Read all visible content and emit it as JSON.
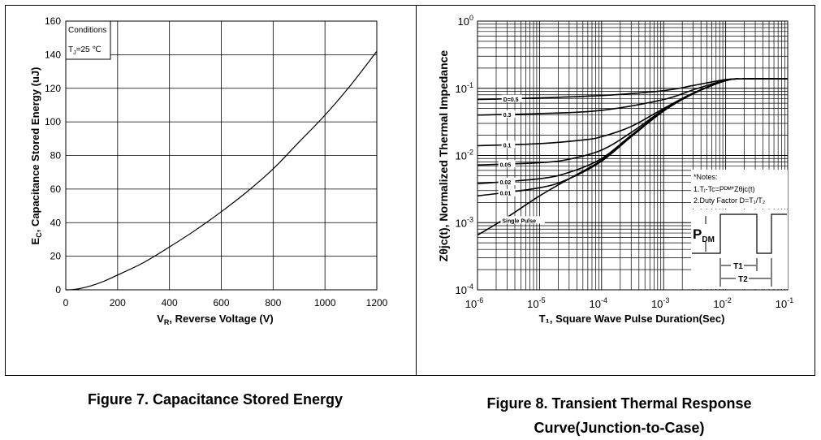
{
  "chart_data": [
    {
      "type": "line",
      "title": "Figure 7. Capacitance Stored Energy",
      "xlabel": "V_R,  Reverse Voltage (V)",
      "ylabel": "E_C, Capacitance Stored Energy (uJ)",
      "xlim": [
        0,
        1200
      ],
      "ylim": [
        0,
        160
      ],
      "x_ticks": [
        "0",
        "200",
        "400",
        "600",
        "800",
        "1000",
        "1200"
      ],
      "y_ticks": [
        "0",
        "20",
        "40",
        "60",
        "80",
        "100",
        "120",
        "140",
        "160"
      ],
      "grid": true,
      "annotation": {
        "line1": "Conditions",
        "line2_pre": "T",
        "line2_sub": "J",
        "line2_post": "=25 ℃"
      },
      "series": [
        {
          "x": [
            0,
            20,
            50,
            100,
            150,
            200,
            300,
            400,
            500,
            600,
            700,
            800,
            900,
            1000,
            1100,
            1200
          ],
          "values": [
            0,
            0.1,
            0.6,
            2.5,
            5.3,
            8.8,
            16.2,
            25.5,
            35.5,
            46.5,
            58.5,
            72.0,
            88.0,
            104.0,
            122.0,
            142.0
          ]
        }
      ]
    },
    {
      "type": "line",
      "title": "Figure 8. Transient Thermal Response Curve(Junction-to-Case)",
      "title_line1": "Figure 8. Transient Thermal Response",
      "title_line2": "Curve(Junction-to-Case)",
      "xlabel": "T₁, Square Wave Pulse Duration(Sec)",
      "ylabel": "Zθjc(t), Normalized Thermal Impedance",
      "xscale": "log",
      "yscale": "log",
      "xlim": [
        1e-06,
        0.1
      ],
      "ylim": [
        0.0001,
        1
      ],
      "x_ticks": [
        {
          "base": "10",
          "exp": "-6"
        },
        {
          "base": "10",
          "exp": "-5"
        },
        {
          "base": "10",
          "exp": "-4"
        },
        {
          "base": "10",
          "exp": "-3"
        },
        {
          "base": "10",
          "exp": "-2"
        },
        {
          "base": "10",
          "exp": "-1"
        }
      ],
      "y_ticks": [
        {
          "base": "10",
          "exp": "0"
        },
        {
          "base": "10",
          "exp": "-1"
        },
        {
          "base": "10",
          "exp": "-2"
        },
        {
          "base": "10",
          "exp": "-3"
        },
        {
          "base": "10",
          "exp": "-4"
        }
      ],
      "grid": true,
      "notes": {
        "title": "*Notes:",
        "line1": "1.Tⱼ-Tc=Pᴰᴹ*Zθjc(t)",
        "line2": "2.Duty Factor D=T₁/T₂"
      },
      "pulse_labels": {
        "pdm": "P",
        "pdm_sub": "DM",
        "t1": "T1",
        "t2": "T2"
      },
      "series": [
        {
          "name": "D=0.5",
          "x": [
            1e-06,
            1e-05,
            0.0001,
            0.001,
            0.003,
            0.01,
            0.02,
            0.1
          ],
          "values": [
            0.068,
            0.072,
            0.078,
            0.092,
            0.11,
            0.135,
            0.138,
            0.138
          ]
        },
        {
          "name": "0.3",
          "x": [
            1e-06,
            1e-05,
            0.0001,
            0.001,
            0.003,
            0.01,
            0.02,
            0.1
          ],
          "values": [
            0.04,
            0.042,
            0.047,
            0.068,
            0.095,
            0.132,
            0.138,
            0.138
          ]
        },
        {
          "name": "0.1",
          "x": [
            1e-06,
            1e-05,
            5e-05,
            0.0001,
            0.0003,
            0.001,
            0.003,
            0.01,
            0.02,
            0.1
          ],
          "values": [
            0.014,
            0.015,
            0.017,
            0.019,
            0.027,
            0.05,
            0.085,
            0.13,
            0.138,
            0.138
          ]
        },
        {
          "name": "0.05",
          "x": [
            1e-06,
            1e-05,
            3e-05,
            0.0001,
            0.0003,
            0.001,
            0.003,
            0.01,
            0.02,
            0.1
          ],
          "values": [
            0.0072,
            0.0078,
            0.0088,
            0.012,
            0.022,
            0.048,
            0.084,
            0.13,
            0.138,
            0.138
          ]
        },
        {
          "name": "0.02",
          "x": [
            1e-06,
            1e-05,
            3e-05,
            0.0001,
            0.0003,
            0.001,
            0.003,
            0.01,
            0.02,
            0.1
          ],
          "values": [
            0.0038,
            0.0045,
            0.0056,
            0.009,
            0.02,
            0.047,
            0.083,
            0.13,
            0.138,
            0.138
          ]
        },
        {
          "name": "0.01",
          "x": [
            1e-06,
            1e-05,
            3e-05,
            0.0001,
            0.0003,
            0.001,
            0.003,
            0.01,
            0.02,
            0.1
          ],
          "values": [
            0.0025,
            0.0033,
            0.0045,
            0.0082,
            0.019,
            0.046,
            0.083,
            0.13,
            0.138,
            0.138
          ]
        },
        {
          "name": "Single Pulse",
          "x": [
            1e-06,
            3e-06,
            1e-05,
            3e-05,
            0.0001,
            0.0003,
            0.001,
            0.003,
            0.01,
            0.02,
            0.1
          ],
          "values": [
            0.00065,
            0.0012,
            0.0025,
            0.0045,
            0.0085,
            0.019,
            0.046,
            0.083,
            0.13,
            0.138,
            0.138
          ]
        }
      ]
    }
  ]
}
